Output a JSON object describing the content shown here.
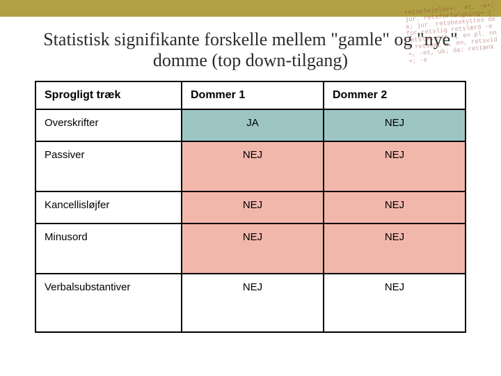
{
  "colors": {
    "top_bar": "#b1a144",
    "row_highlight_ja": "#9cc5c4",
    "row_highlight_nej": "#f2b7ab",
    "row_plain": "#ffffff",
    "border": "#000000",
    "title_text": "#2b2b2b"
  },
  "title": "Statistisk signifikante forskelle mellem \"gamle\" og \"nye\" domme (top down-tilgang)",
  "table": {
    "columns": [
      "Sprogligt træk",
      "Dommer 1",
      "Dommer 2"
    ],
    "rows": [
      {
        "label": "Overskrifter",
        "d1": "JA",
        "d2": "NEJ",
        "row_bg": "#9cc5c4",
        "height": "row-h-short"
      },
      {
        "label": "Passiver",
        "d1": "NEJ",
        "d2": "NEJ",
        "row_bg": "#f2b7ab",
        "height": "row-h-tall"
      },
      {
        "label": "Kancellisløjfer",
        "d1": "NEJ",
        "d2": "NEJ",
        "row_bg": "#f2b7ab",
        "height": "row-h-short"
      },
      {
        "label": "Minusord",
        "d1": "NEJ",
        "d2": "NEJ",
        "row_bg": "#f2b7ab",
        "height": "row-h-tall"
      },
      {
        "label": "Verbalsubstantiver",
        "d1": "NEJ",
        "d2": "NEJ",
        "row_bg": "#ffffff",
        "height": "row-h-tall2"
      }
    ]
  },
  "deco": "retsplejelov➔, -et, -e+; jur. retsforfølgning➔ ja; jur. retsbeskyttes defor retslig retslærd -e retsløs ret ➔, en pl. nno retstat ➔, en, retsvid ➔, -et, uk; da: rettænk ➔; -e"
}
